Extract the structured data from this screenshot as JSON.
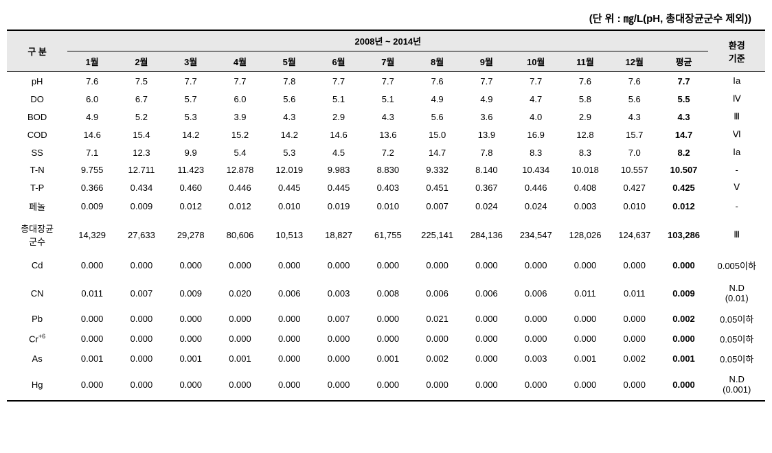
{
  "unit_label": "(단 위 : ㎎/L(pH, 총대장균군수 제외))",
  "header": {
    "category": "구 분",
    "period": "2008년 ~ 2014년",
    "standard": "환경\n기준",
    "months": [
      "1월",
      "2월",
      "3월",
      "4월",
      "5월",
      "6월",
      "7월",
      "8월",
      "9월",
      "10월",
      "11월",
      "12월"
    ],
    "avg": "평균"
  },
  "rows": [
    {
      "label": "pH",
      "m": [
        "7.6",
        "7.5",
        "7.7",
        "7.7",
        "7.8",
        "7.7",
        "7.7",
        "7.6",
        "7.7",
        "7.7",
        "7.6",
        "7.6"
      ],
      "avg": "7.7",
      "std": "Ⅰa"
    },
    {
      "label": "DO",
      "m": [
        "6.0",
        "6.7",
        "5.7",
        "6.0",
        "5.6",
        "5.1",
        "5.1",
        "4.9",
        "4.9",
        "4.7",
        "5.8",
        "5.6"
      ],
      "avg": "5.5",
      "std": "Ⅳ"
    },
    {
      "label": "BOD",
      "m": [
        "4.9",
        "5.2",
        "5.3",
        "3.9",
        "4.3",
        "2.9",
        "4.3",
        "5.6",
        "3.6",
        "4.0",
        "2.9",
        "4.3"
      ],
      "avg": "4.3",
      "std": "Ⅲ"
    },
    {
      "label": "COD",
      "m": [
        "14.6",
        "15.4",
        "14.2",
        "15.2",
        "14.2",
        "14.6",
        "13.6",
        "15.0",
        "13.9",
        "16.9",
        "12.8",
        "15.7"
      ],
      "avg": "14.7",
      "std": "Ⅵ"
    },
    {
      "label": "SS",
      "m": [
        "7.1",
        "12.3",
        "9.9",
        "5.4",
        "5.3",
        "4.5",
        "7.2",
        "14.7",
        "7.8",
        "8.3",
        "8.3",
        "7.0"
      ],
      "avg": "8.2",
      "std": "Ⅰa"
    },
    {
      "label": "T-N",
      "m": [
        "9.755",
        "12.711",
        "11.423",
        "12.878",
        "12.019",
        "9.983",
        "8.830",
        "9.332",
        "8.140",
        "10.434",
        "10.018",
        "10.557"
      ],
      "avg": "10.507",
      "std": "-"
    },
    {
      "label": "T-P",
      "m": [
        "0.366",
        "0.434",
        "0.460",
        "0.446",
        "0.445",
        "0.445",
        "0.403",
        "0.451",
        "0.367",
        "0.446",
        "0.408",
        "0.427"
      ],
      "avg": "0.425",
      "std": "Ⅴ"
    },
    {
      "label": "페놀",
      "m": [
        "0.009",
        "0.009",
        "0.012",
        "0.012",
        "0.010",
        "0.019",
        "0.010",
        "0.007",
        "0.024",
        "0.024",
        "0.003",
        "0.010"
      ],
      "avg": "0.012",
      "std": "-"
    },
    {
      "label": "총대장균\n군수",
      "m": [
        "14,329",
        "27,633",
        "29,278",
        "80,606",
        "10,513",
        "18,827",
        "61,755",
        "225,141",
        "284,136",
        "234,547",
        "128,026",
        "124,637"
      ],
      "avg": "103,286",
      "std": "Ⅲ",
      "higher": true
    },
    {
      "label": "Cd",
      "m": [
        "0.000",
        "0.000",
        "0.000",
        "0.000",
        "0.000",
        "0.000",
        "0.000",
        "0.000",
        "0.000",
        "0.000",
        "0.000",
        "0.000"
      ],
      "avg": "0.000",
      "std": "0.005이하",
      "higher": true
    },
    {
      "label": "CN",
      "m": [
        "0.011",
        "0.007",
        "0.009",
        "0.020",
        "0.006",
        "0.003",
        "0.008",
        "0.006",
        "0.006",
        "0.006",
        "0.011",
        "0.011"
      ],
      "avg": "0.009",
      "std": "N.D\n(0.01)",
      "higher": true
    },
    {
      "label": "Pb",
      "m": [
        "0.000",
        "0.000",
        "0.000",
        "0.000",
        "0.000",
        "0.007",
        "0.000",
        "0.021",
        "0.000",
        "0.000",
        "0.000",
        "0.000"
      ],
      "avg": "0.002",
      "std": "0.05이하"
    },
    {
      "label": "Cr+6",
      "m": [
        "0.000",
        "0.000",
        "0.000",
        "0.000",
        "0.000",
        "0.000",
        "0.000",
        "0.000",
        "0.000",
        "0.000",
        "0.000",
        "0.000"
      ],
      "avg": "0.000",
      "std": "0.05이하",
      "labelHtml": "Cr<sup>+6</sup>"
    },
    {
      "label": "As",
      "m": [
        "0.001",
        "0.000",
        "0.001",
        "0.001",
        "0.000",
        "0.000",
        "0.001",
        "0.002",
        "0.000",
        "0.003",
        "0.001",
        "0.002"
      ],
      "avg": "0.001",
      "std": "0.05이하"
    },
    {
      "label": "Hg",
      "m": [
        "0.000",
        "0.000",
        "0.000",
        "0.000",
        "0.000",
        "0.000",
        "0.000",
        "0.000",
        "0.000",
        "0.000",
        "0.000",
        "0.000"
      ],
      "avg": "0.000",
      "std": "N.D\n(0.001)",
      "higher": true
    }
  ],
  "colors": {
    "header_bg": "#e8e8e8",
    "border": "#000000",
    "bg": "#ffffff"
  }
}
